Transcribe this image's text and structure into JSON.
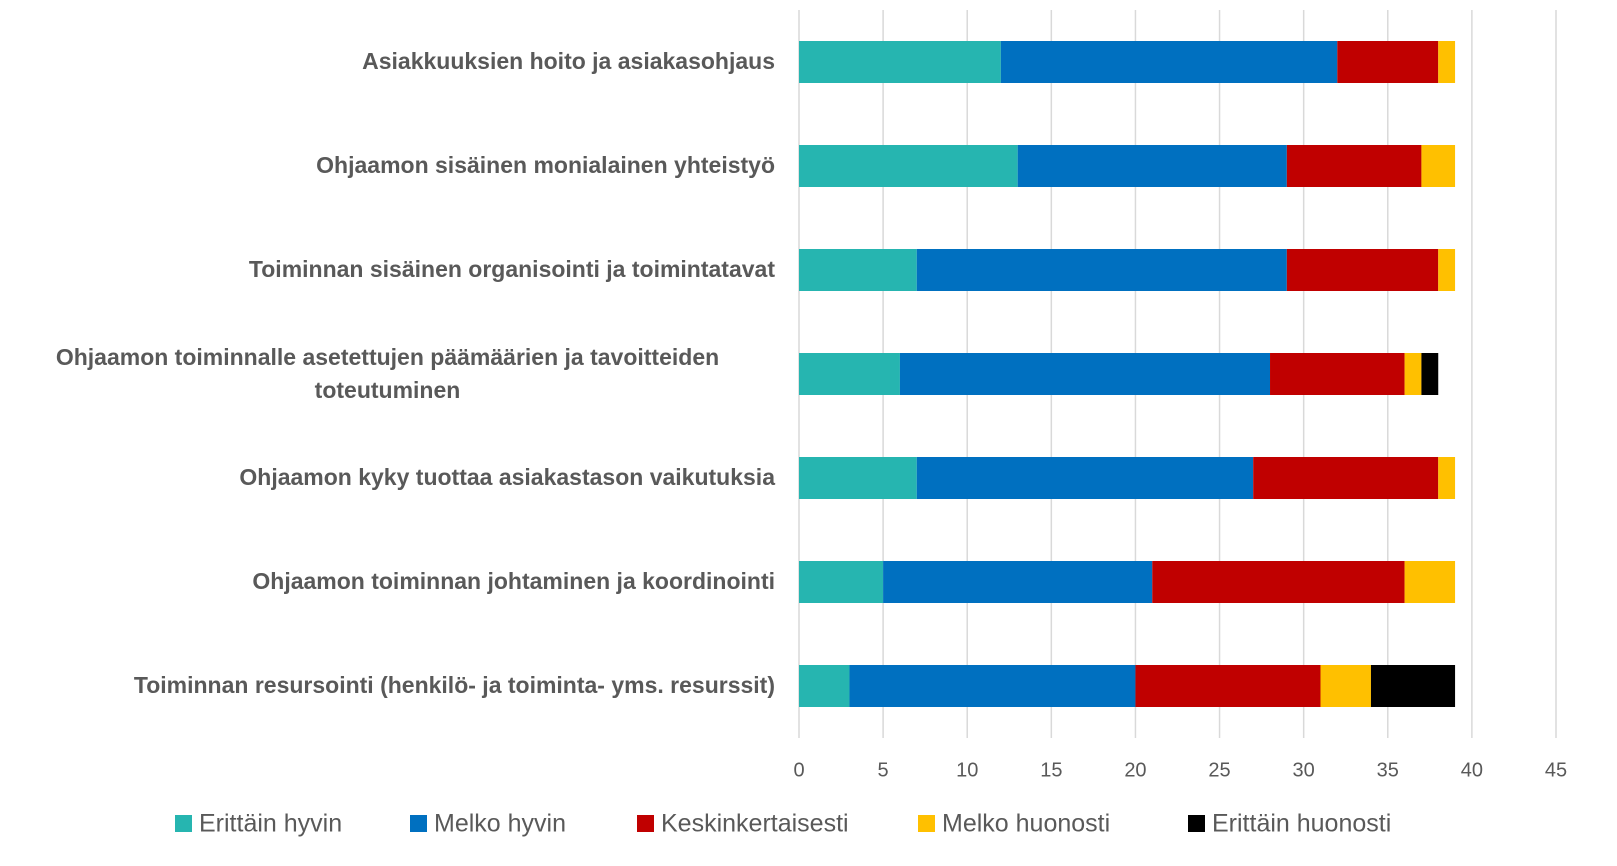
{
  "chart_data": {
    "type": "stacked_barh",
    "categories": [
      "Asiakkuuksien hoito ja asiakasohjaus",
      "Ohjaamon sisäinen monialainen yhteistyö",
      "Toiminnan sisäinen organisointi ja toimintatavat",
      "Ohjaamon toiminnalle asetettujen päämäärien ja tavoitteiden toteutuminen",
      "Ohjaamon kyky tuottaa asiakastason vaikutuksia",
      "Ohjaamon toiminnan johtaminen ja koordinointi",
      "Toiminnan resursointi (henkilö- ja toiminta- yms. resurssit)"
    ],
    "series": [
      {
        "name": "Erittäin hyvin",
        "color": "#26b5b0",
        "values": [
          12,
          13,
          7,
          6,
          7,
          5,
          3
        ]
      },
      {
        "name": "Melko hyvin",
        "color": "#0070c0",
        "values": [
          20,
          16,
          22,
          22,
          20,
          16,
          17
        ]
      },
      {
        "name": "Keskinkertaisesti",
        "color": "#c00000",
        "values": [
          6,
          8,
          9,
          8,
          11,
          15,
          11
        ]
      },
      {
        "name": "Melko huonosti",
        "color": "#ffc000",
        "values": [
          1,
          2,
          1,
          1,
          1,
          3,
          3
        ]
      },
      {
        "name": "Erittäin huonosti",
        "color": "#000000",
        "values": [
          0,
          0,
          0,
          1,
          0,
          0,
          5
        ]
      }
    ],
    "xlim": [
      0,
      45
    ],
    "xticks": [
      0,
      5,
      10,
      15,
      20,
      25,
      30,
      35,
      40,
      45
    ],
    "grid": true,
    "legend": "bottom"
  }
}
